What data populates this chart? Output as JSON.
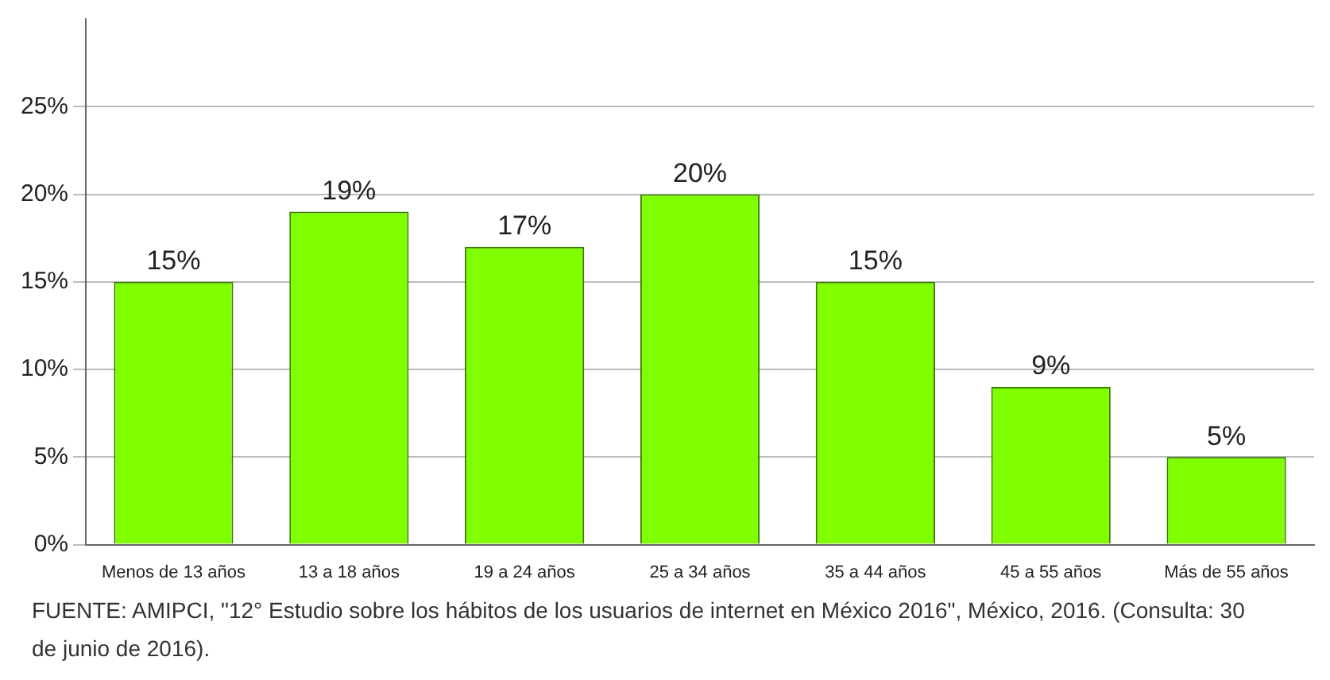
{
  "chart_data": {
    "type": "bar",
    "categories": [
      "Menos de 13 años",
      "13 a 18 años",
      "19 a 24 años",
      "25 a 34 años",
      "35 a 44 años",
      "45 a 55 años",
      "Más de 55 años"
    ],
    "values": [
      15,
      19,
      17,
      20,
      15,
      9,
      5
    ],
    "color": "#80ff00",
    "ylim": [
      0,
      30
    ],
    "yticks": [
      {
        "value": 0,
        "label": "0%"
      },
      {
        "value": 5,
        "label": "5%"
      },
      {
        "value": 10,
        "label": "10%"
      },
      {
        "value": 15,
        "label": "15%"
      },
      {
        "value": 20,
        "label": "20%"
      },
      {
        "value": 25,
        "label": "25%"
      }
    ],
    "value_labels": [
      "15%",
      "19%",
      "17%",
      "20%",
      "15%",
      "9%",
      "5%"
    ],
    "grid": "y",
    "annotations": [
      "FUENTE: AMIPCI, \"12° Estudio sobre los hábitos de los usuarios de internet en México 2016\", México, 2016. (Consulta: 30 de junio de 2016)."
    ]
  }
}
